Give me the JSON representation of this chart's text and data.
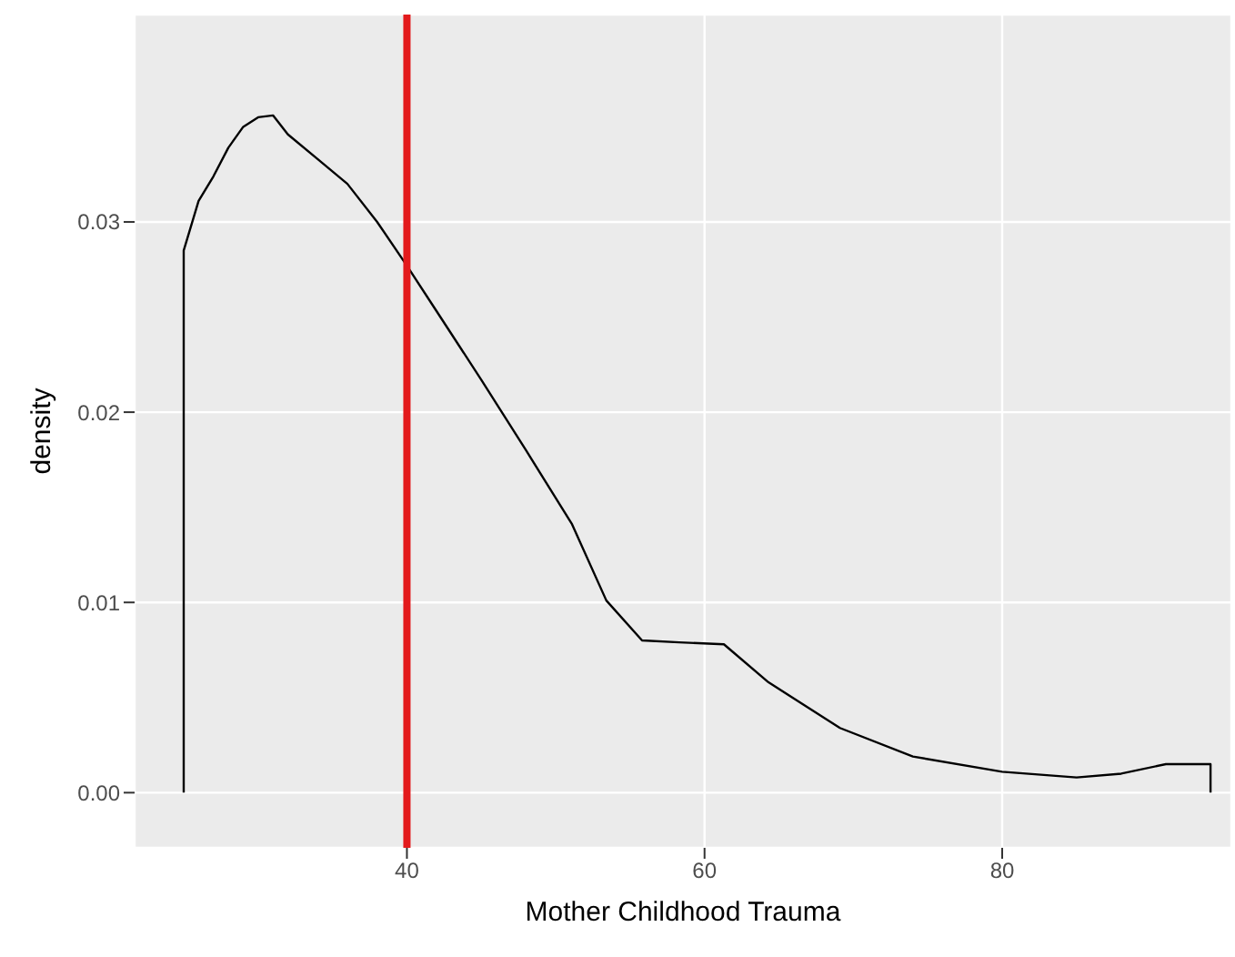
{
  "chart_data": {
    "type": "line",
    "xlabel": "Mother Childhood Trauma",
    "ylabel": "density",
    "x": [
      25,
      25,
      26,
      27,
      28,
      29,
      30,
      31,
      32,
      34,
      36,
      38,
      40,
      42,
      45,
      48,
      51.1,
      53.4,
      55.8,
      58.3,
      61.3,
      64.3,
      69.1,
      74,
      80,
      85,
      88,
      91,
      94,
      94
    ],
    "series": [
      {
        "color": "#000000",
        "values": [
          0,
          0.0285,
          0.0311,
          0.0324,
          0.0339,
          0.035,
          0.0355,
          0.0356,
          0.0346,
          0.0333,
          0.032,
          0.03,
          0.0277,
          0.0253,
          0.0217,
          0.018,
          0.0141,
          0.0101,
          0.008,
          0.0079,
          0.0078,
          0.0058,
          0.0034,
          0.0019,
          0.0011,
          0.0008,
          0.001,
          0.0015,
          0.0015,
          0
        ]
      }
    ],
    "xlim": [
      21.7,
      95.4
    ],
    "ylim": [
      -0.0029,
      0.0409
    ],
    "xticks": [
      40,
      60,
      80
    ],
    "yticks": [
      {
        "value": 0,
        "label": "0.00"
      },
      {
        "value": 0.01,
        "label": "0.01"
      },
      {
        "value": 0.02,
        "label": "0.02"
      },
      {
        "value": 0.03,
        "label": "0.03"
      }
    ],
    "grid": true,
    "marker": "none",
    "line_style": "solid",
    "ref_lines": [
      {
        "axis": "x",
        "value": 40,
        "label": null,
        "color": "#e31a1c"
      }
    ]
  }
}
